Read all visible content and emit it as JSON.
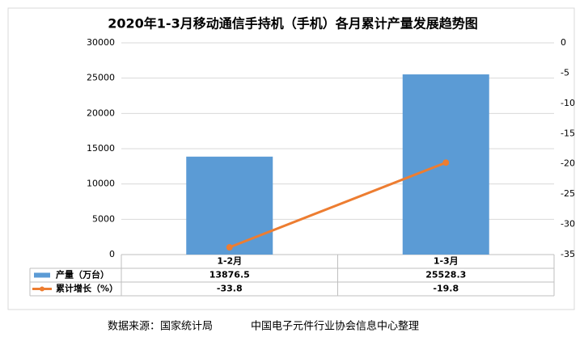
{
  "chart_data": {
    "type": "bar",
    "title": "2020年1-3月移动通信手持机（手机）各月累计产量发展趋势图",
    "categories": [
      "1-2月",
      "1-3月"
    ],
    "series": [
      {
        "name": "产量（万台）",
        "type": "bar",
        "color": "#5b9bd5",
        "values": [
          13876.5,
          25528.3
        ]
      },
      {
        "name": "累计增长（%）",
        "type": "line",
        "axis": "y2",
        "color": "#ed7d31",
        "values": [
          -33.8,
          -19.8
        ]
      }
    ],
    "ylim": [
      0,
      30000
    ],
    "yticks": [
      0,
      5000,
      10000,
      15000,
      20000,
      25000,
      30000
    ],
    "y2lim": [
      -35,
      0
    ],
    "y2ticks": [
      0,
      -5,
      -10,
      -15,
      -20,
      -25,
      -30,
      -35
    ],
    "grid": true
  },
  "footer": {
    "source": "数据来源：国家统计局",
    "note": "中国电子元件行业协会信息中心整理"
  }
}
